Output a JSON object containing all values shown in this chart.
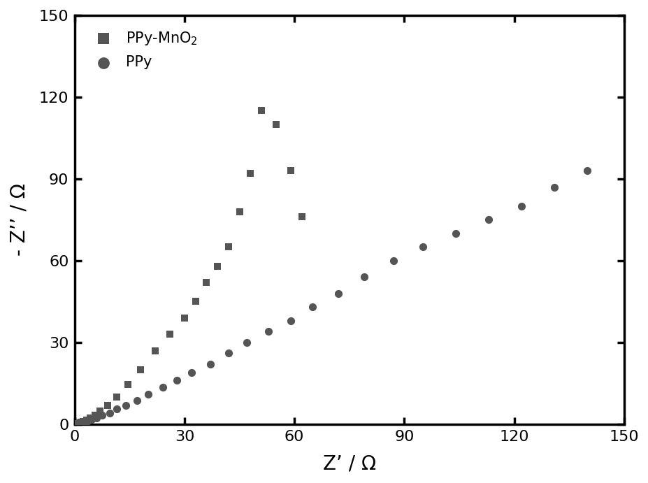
{
  "xlabel": "Z’ / Ω",
  "ylabel": "- Z’’ / Ω",
  "xlim": [
    0,
    150
  ],
  "ylim": [
    0,
    150
  ],
  "xticks": [
    0,
    30,
    60,
    90,
    120,
    150
  ],
  "yticks": [
    0,
    30,
    60,
    90,
    120,
    150
  ],
  "color_square": "#555555",
  "color_circle": "#555555",
  "background_color": "#ffffff",
  "ppy_mno2_x": [
    0.2,
    0.4,
    0.6,
    0.9,
    1.3,
    1.8,
    2.4,
    3.2,
    4.2,
    5.5,
    7.0,
    9.0,
    11.5,
    14.5,
    18,
    22,
    26,
    30,
    33,
    36,
    39,
    42,
    45,
    48,
    51,
    55,
    59,
    62
  ],
  "ppy_mno2_y": [
    0.1,
    0.15,
    0.2,
    0.3,
    0.5,
    0.7,
    1.0,
    1.5,
    2.2,
    3.2,
    4.8,
    7.0,
    10,
    14.5,
    20,
    27,
    33,
    39,
    45,
    52,
    58,
    65,
    78,
    92,
    115,
    110,
    93,
    76
  ],
  "ppy_x": [
    0.15,
    0.25,
    0.4,
    0.6,
    0.85,
    1.2,
    1.6,
    2.1,
    2.8,
    3.6,
    4.7,
    6.0,
    7.5,
    9.5,
    11.5,
    14,
    17,
    20,
    24,
    28,
    32,
    37,
    42,
    47,
    53,
    59,
    65,
    72,
    79,
    87,
    95,
    104,
    113,
    122,
    131,
    140
  ],
  "ppy_y": [
    0.05,
    0.08,
    0.12,
    0.18,
    0.26,
    0.38,
    0.52,
    0.72,
    1.0,
    1.3,
    1.8,
    2.4,
    3.2,
    4.2,
    5.5,
    7.0,
    8.8,
    11,
    13.5,
    16,
    19,
    22,
    26,
    30,
    34,
    38,
    43,
    48,
    54,
    60,
    65,
    70,
    75,
    80,
    87,
    93
  ]
}
